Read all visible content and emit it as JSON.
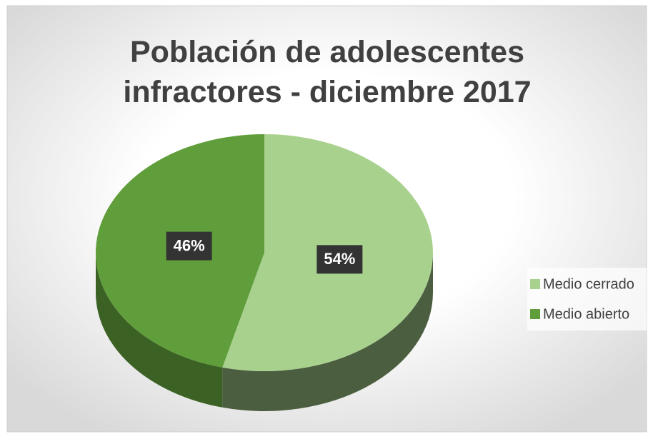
{
  "chart_data": {
    "type": "pie",
    "title": "Población de adolescentes infractores - diciembre 2017",
    "categories": [
      "Medio cerrado",
      "Medio abierto"
    ],
    "values": [
      54,
      46
    ],
    "value_labels": [
      "54%",
      "46%"
    ],
    "colors": [
      "#a9d18e",
      "#5f9e3a"
    ],
    "legend": "right"
  }
}
